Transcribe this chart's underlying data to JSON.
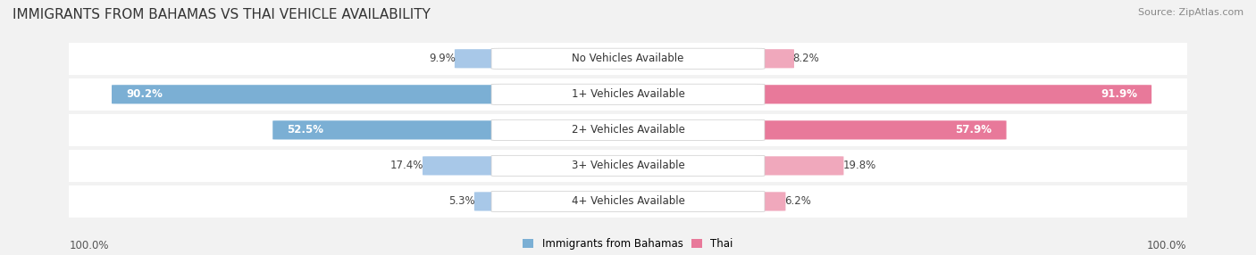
{
  "title": "IMMIGRANTS FROM BAHAMAS VS THAI VEHICLE AVAILABILITY",
  "source": "Source: ZipAtlas.com",
  "categories": [
    "No Vehicles Available",
    "1+ Vehicles Available",
    "2+ Vehicles Available",
    "3+ Vehicles Available",
    "4+ Vehicles Available"
  ],
  "bahamas_values": [
    9.9,
    90.2,
    52.5,
    17.4,
    5.3
  ],
  "thai_values": [
    8.2,
    91.9,
    57.9,
    19.8,
    6.2
  ],
  "bahamas_color": "#7bafd4",
  "thai_color": "#e8799a",
  "bahamas_color_light": "#a8c8e8",
  "thai_color_light": "#f0a8bc",
  "max_value": 100.0,
  "background_color": "#f2f2f2",
  "label_fontsize": 8.5,
  "title_fontsize": 11,
  "source_fontsize": 8
}
